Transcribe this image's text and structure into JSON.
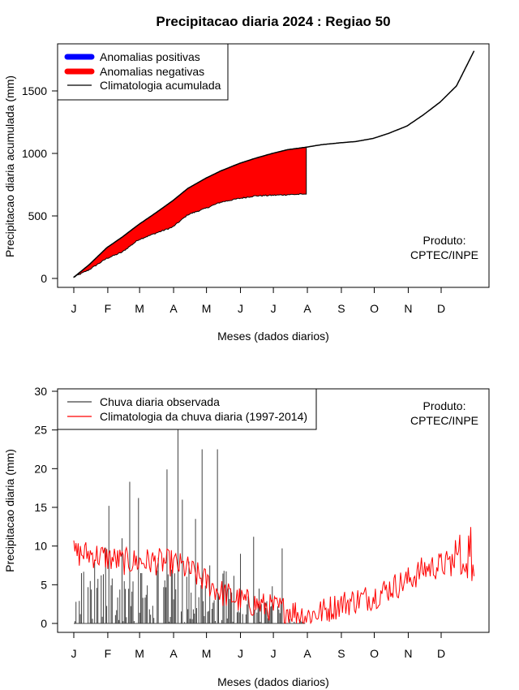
{
  "title": "Precipitacao diaria 2024 : Regiao 50",
  "month_labels": [
    "J",
    "F",
    "M",
    "A",
    "M",
    "J",
    "J",
    "A",
    "S",
    "O",
    "N",
    "D"
  ],
  "credit_line1": "Produto:",
  "credit_line2": "CPTEC/INPE",
  "colors": {
    "positive": "#0000ff",
    "negative": "#ff0000",
    "climatology": "#000000",
    "observed": "#404040",
    "daily_clim": "#ff0000"
  },
  "chart_data": [
    {
      "type": "area",
      "xlabel": "Meses (dados diarios)",
      "ylabel": "Precipitacao diaria acumulada (mm)",
      "ylim": [
        0,
        1800
      ],
      "yticks": [
        0,
        500,
        1000,
        1500
      ],
      "xlim_days": [
        1,
        366
      ],
      "legend": [
        "Anomalias positivas",
        "Anomalias negativas",
        "Climatologia acumulada"
      ],
      "legend_position": "top-left",
      "climatology_accumulated": {
        "day": [
          1,
          15,
          31,
          45,
          60,
          75,
          91,
          105,
          121,
          135,
          152,
          166,
          182,
          196,
          213,
          227,
          244,
          258,
          274,
          288,
          305,
          320,
          335,
          350,
          366
        ],
        "value": [
          10,
          110,
          245,
          330,
          430,
          520,
          620,
          720,
          800,
          860,
          920,
          960,
          1000,
          1030,
          1050,
          1070,
          1085,
          1095,
          1120,
          1160,
          1220,
          1310,
          1410,
          1540,
          1820
        ]
      },
      "observed_accumulated": {
        "day": [
          1,
          15,
          31,
          45,
          60,
          75,
          91,
          105,
          121,
          135,
          152,
          166,
          182,
          196,
          213
        ],
        "value": [
          10,
          70,
          160,
          210,
          310,
          360,
          410,
          510,
          560,
          610,
          640,
          660,
          665,
          670,
          675
        ]
      }
    },
    {
      "type": "line",
      "xlabel": "Meses (dados diarios)",
      "ylabel": "Precipitacao diaria (mm)",
      "ylim": [
        0,
        30
      ],
      "yticks": [
        0,
        5,
        10,
        15,
        20,
        25,
        30
      ],
      "xlim_days": [
        1,
        366
      ],
      "legend": [
        "Chuva diaria observada",
        "Climatologia da chuva diaria (1997-2014)"
      ],
      "legend_position": "top-left",
      "observed_peaks": {
        "day": [
          8,
          20,
          30,
          33,
          45,
          52,
          60,
          63,
          78,
          86,
          91,
          96,
          100,
          106,
          112,
          118,
          125,
          132,
          138,
          145,
          153,
          160,
          165,
          170,
          176,
          182,
          191
        ],
        "value": [
          6.5,
          8.2,
          9.8,
          15.2,
          11.0,
          18.3,
          16.2,
          6.5,
          8.5,
          19.9,
          7.0,
          25.5,
          16.0,
          8.0,
          13.5,
          22.5,
          7.5,
          22.5,
          6.8,
          4.0,
          9.0,
          3.5,
          11.2,
          4.5,
          2.0,
          4.8,
          9.7
        ]
      },
      "daily_climatology": {
        "day": [
          1,
          15,
          31,
          45,
          60,
          75,
          91,
          105,
          121,
          135,
          152,
          166,
          182,
          196,
          213,
          227,
          244,
          258,
          274,
          288,
          305,
          320,
          335,
          350,
          366
        ],
        "value": [
          9.0,
          9.0,
          8.5,
          8.0,
          8.0,
          8.0,
          7.8,
          7.0,
          5.5,
          4.0,
          3.0,
          2.5,
          2.0,
          1.8,
          1.0,
          1.5,
          2.5,
          3.0,
          3.5,
          4.5,
          5.5,
          7.0,
          7.5,
          8.0,
          7.0
        ]
      }
    }
  ]
}
